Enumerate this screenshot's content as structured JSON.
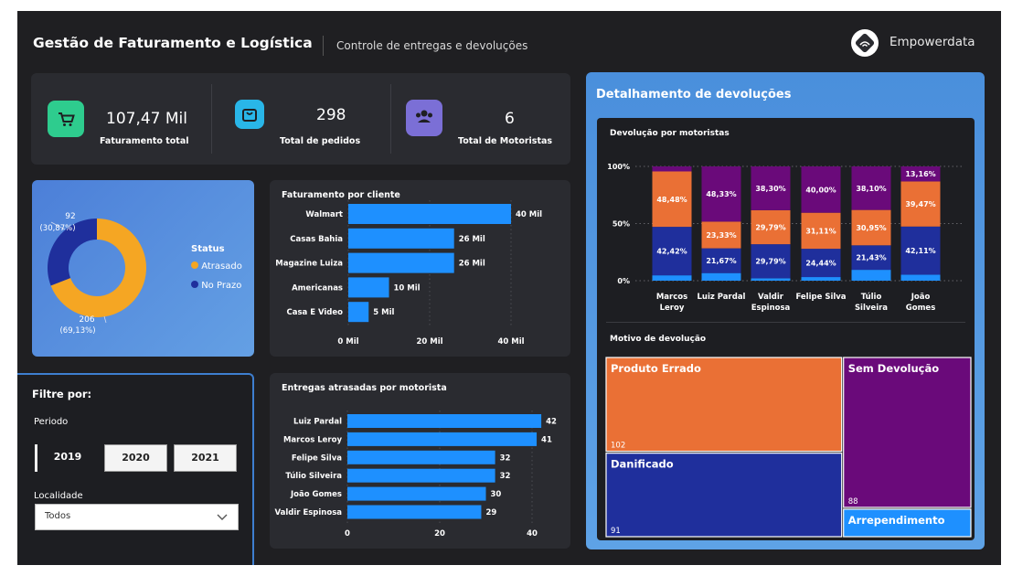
{
  "header": {
    "title": "Gestão de Faturamento e Logística",
    "subtitle": "Controle de entregas e devoluções",
    "brand": "Empowerdata"
  },
  "kpis": [
    {
      "icon": "shopping-cart-icon",
      "value": "107,47 Mil",
      "label": "Faturamento total",
      "color": "#2ecc8e"
    },
    {
      "icon": "shopping-bag-icon",
      "value": "298",
      "label": "Total de pedidos",
      "color": "#29b6e8"
    },
    {
      "icon": "users-icon",
      "value": "6",
      "label": "Total de Motoristas",
      "color": "#7b6fd6"
    }
  ],
  "filters": {
    "title": "Filtre por:",
    "period_label": "Periodo",
    "years": [
      "2019",
      "2020",
      "2021"
    ],
    "selected_year": "2019",
    "location_label": "Localidade",
    "location_value": "Todos"
  },
  "chart_data": [
    {
      "type": "pie",
      "title": "",
      "legend_title": "Status",
      "legend_position": "right",
      "slices": [
        {
          "name": "Atrasado",
          "value": 206,
          "label": "206",
          "pct": "(69,13%)",
          "color": "#f5a623"
        },
        {
          "name": "No Prazo",
          "value": 92,
          "label": "92",
          "pct": "(30,87%)",
          "color": "#1f2f9c"
        }
      ]
    },
    {
      "type": "bar",
      "orientation": "horizontal",
      "title": "Faturamento por cliente",
      "categories": [
        "Walmart",
        "Casas Bahia",
        "Magazine Luiza",
        "Americanas",
        "Casa E Video"
      ],
      "values": [
        40,
        26,
        26,
        10,
        5
      ],
      "value_labels": [
        "40 Mil",
        "26 Mil",
        "26 Mil",
        "10 Mil",
        "5 Mil"
      ],
      "xlim": [
        0,
        40
      ],
      "xticks": [
        0,
        20,
        40
      ],
      "xtick_labels": [
        "0 Mil",
        "20 Mil",
        "40 Mil"
      ],
      "color": "#1e90ff"
    },
    {
      "type": "bar",
      "orientation": "horizontal",
      "title": "Entregas atrasadas por motorista",
      "categories": [
        "Luiz Pardal",
        "Marcos Leroy",
        "Felipe Silva",
        "Túlio Silveira",
        "João Gomes",
        "Valdir Espinosa"
      ],
      "values": [
        42,
        41,
        32,
        32,
        30,
        29
      ],
      "value_labels": [
        "42",
        "41",
        "32",
        "32",
        "30",
        "29"
      ],
      "xlim": [
        0,
        40
      ],
      "xticks": [
        0,
        20,
        40
      ],
      "xtick_labels": [
        "0",
        "20",
        "40"
      ],
      "color": "#1e90ff"
    },
    {
      "type": "bar",
      "stacked": "percent",
      "title": "Devolução por motoristas",
      "panel_title": "Detalhamento de devoluções",
      "categories": [
        [
          "Marcos",
          "Leroy"
        ],
        [
          "Luiz Pardal"
        ],
        [
          "Valdir",
          "Espinosa"
        ],
        [
          "Felipe Silva"
        ],
        [
          "Túlio",
          "Silveira"
        ],
        [
          "João",
          "Gomes"
        ]
      ],
      "yticks": [
        "0%",
        "50%",
        "100%"
      ],
      "series": [
        {
          "color": "#1e90ff",
          "values": [
            4.7,
            6.67,
            2.12,
            3.12,
            9.52,
            5.26
          ],
          "labels": [
            "",
            "",
            "",
            "",
            "",
            ""
          ]
        },
        {
          "color": "#1f2f9c",
          "values": [
            42.42,
            21.67,
            29.79,
            24.44,
            21.43,
            42.11
          ],
          "labels": [
            "42,42%",
            "21,67%",
            "29,79%",
            "24,44%",
            "21,43%",
            "42,11%"
          ]
        },
        {
          "color": "#ea7035",
          "values": [
            48.48,
            23.33,
            29.79,
            31.11,
            30.95,
            39.47
          ],
          "labels": [
            "48,48%",
            "23,33%",
            "29,79%",
            "31,11%",
            "30,95%",
            "39,47%"
          ]
        },
        {
          "color": "#6a0a7a",
          "values": [
            4.4,
            48.33,
            38.3,
            40.0,
            38.1,
            13.16
          ],
          "labels": [
            "",
            "48,33%",
            "38,30%",
            "40,00%",
            "38,10%",
            "13,16%"
          ]
        }
      ]
    },
    {
      "type": "treemap",
      "title": "Motivo de devolução",
      "items": [
        {
          "name": "Produto Errado",
          "value": 102,
          "value_label": "102",
          "color": "#ea7035"
        },
        {
          "name": "Danificado",
          "value": 91,
          "value_label": "91",
          "color": "#1f2f9c"
        },
        {
          "name": "Sem Devolução",
          "value": 88,
          "value_label": "88",
          "color": "#6a0a7a"
        },
        {
          "name": "Arrependimento",
          "value": 17,
          "value_label": "",
          "color": "#1e90ff"
        }
      ]
    }
  ]
}
